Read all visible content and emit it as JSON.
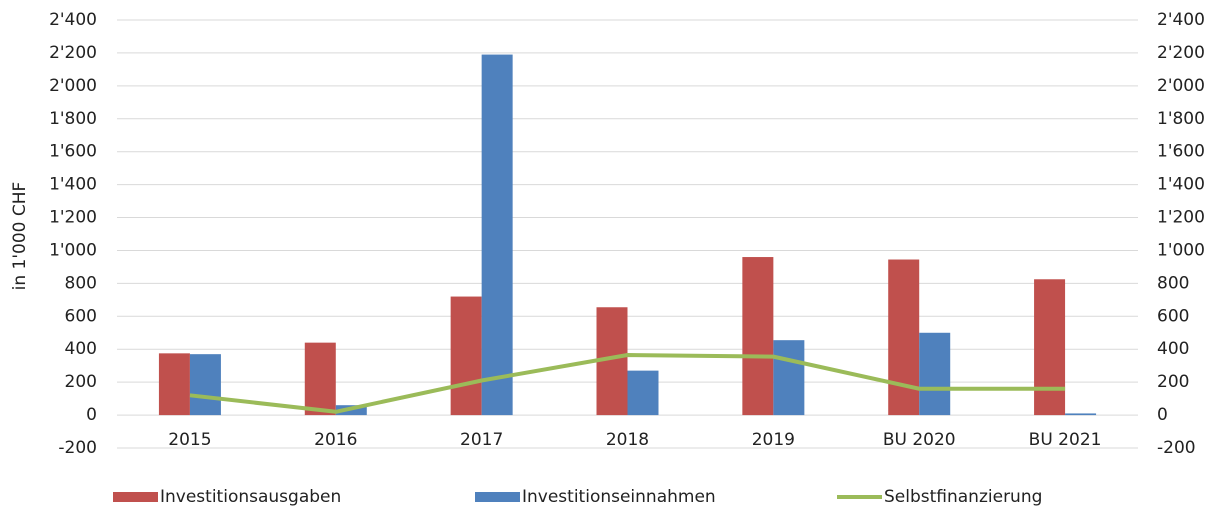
{
  "chart_data": {
    "type": "bar",
    "y_label": "in 1'000 CHF",
    "categories": [
      "2015",
      "2016",
      "2017",
      "2018",
      "2019",
      "BU 2020",
      "BU 2021"
    ],
    "series": [
      {
        "name": "Investitionsausgaben",
        "type": "bar",
        "color": "#c0504d",
        "values": [
          375,
          440,
          720,
          655,
          960,
          945,
          825
        ]
      },
      {
        "name": "Investitionseinnahmen",
        "type": "bar",
        "color": "#4f81bd",
        "values": [
          370,
          60,
          2190,
          270,
          455,
          500,
          10
        ]
      },
      {
        "name": "Selbstfinanzierung",
        "type": "line",
        "color": "#9bbb59",
        "values": [
          120,
          20,
          210,
          365,
          355,
          160,
          160
        ]
      }
    ],
    "ylim": [
      -200,
      2400
    ],
    "yticks": [
      -200,
      0,
      200,
      400,
      600,
      800,
      {
        "value": 1000,
        "label": "1'000"
      },
      {
        "value": 1200,
        "label": "1'200"
      },
      {
        "value": 1400,
        "label": "1'400"
      },
      {
        "value": 1600,
        "label": "1'600"
      },
      {
        "value": 1800,
        "label": "1'800"
      },
      {
        "value": 2000,
        "label": "2'000"
      },
      {
        "value": 2200,
        "label": "2'200"
      },
      {
        "value": 2400,
        "label": "2'400"
      }
    ],
    "y2lim": [
      -200,
      2400
    ],
    "y2ticks": [
      -200,
      0,
      200,
      400,
      600,
      800,
      {
        "value": 1000,
        "label": "1'000"
      },
      {
        "value": 1200,
        "label": "1'200"
      },
      {
        "value": 1400,
        "label": "1'400"
      },
      {
        "value": 1600,
        "label": "1'600"
      },
      {
        "value": 1800,
        "label": "1'800"
      },
      {
        "value": 2000,
        "label": "2'000"
      },
      {
        "value": 2200,
        "label": "2'200"
      },
      {
        "value": 2400,
        "label": "2'400"
      }
    ],
    "grid": true,
    "legend": "bottom"
  }
}
